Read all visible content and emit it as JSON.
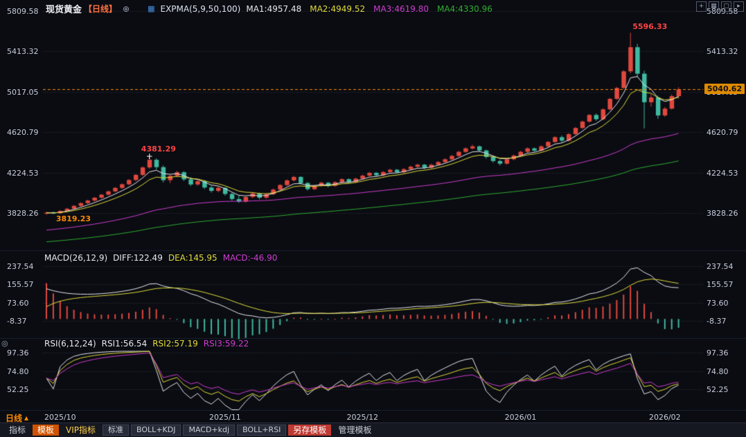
{
  "header": {
    "symbol": "现货黄金",
    "period_tag": "【日线】",
    "indicator": "EXPMA(5,9,50,100)",
    "ma_labels": [
      "MA1:4957.48",
      "MA2:4949.52",
      "MA3:4619.80",
      "MA4:4330.96"
    ]
  },
  "window_icons": [
    {
      "glyph": "+",
      "name": "add-chart-icon"
    },
    {
      "glyph": "▦",
      "name": "grid-layout-icon"
    },
    {
      "glyph": "▢",
      "name": "single-layout-icon"
    },
    {
      "glyph": "▸",
      "name": "collapse-panel-icon"
    }
  ],
  "macd": {
    "header": "MACD(26,12,9)",
    "diff": "DIFF:122.49",
    "dea": "DEA:145.95",
    "value": "MACD:-46.90"
  },
  "rsi": {
    "header": "RSI(6,12,24)",
    "r1": "RSI1:56.54",
    "r2": "RSI2:57.19",
    "r3": "RSI3:59.22"
  },
  "x_axis": {
    "period_label": "日线",
    "up_arrow": "▲"
  },
  "toolbar": {
    "items": [
      {
        "label": "指标",
        "name": "tab-indicator",
        "style": "plain"
      },
      {
        "label": "模板",
        "name": "tab-template",
        "style": "orange"
      },
      {
        "label": "VIP指标",
        "name": "tab-vip-indicator",
        "style": "vip"
      },
      {
        "label": "标准",
        "name": "preset-standard",
        "style": "btn"
      },
      {
        "label": "BOLL+KDJ",
        "name": "preset-boll-kdj",
        "style": "btn"
      },
      {
        "label": "MACD+kdj",
        "name": "preset-macd-kdj",
        "style": "btn"
      },
      {
        "label": "BOLL+RSI",
        "name": "preset-boll-rsi",
        "style": "btn"
      },
      {
        "label": "另存模板",
        "name": "save-template-button",
        "style": "red"
      },
      {
        "label": "管理模板",
        "name": "manage-template-button",
        "style": "plain"
      }
    ]
  },
  "colors": {
    "up": "#e0483e",
    "down": "#3fb9a0",
    "ma1": "#e8e8f0",
    "ma2": "#e2dc3a",
    "ma3": "#cf3ccf",
    "ma4": "#2fae2f",
    "accent": "#ff8a00",
    "grid": "rgba(140,150,175,0.30)",
    "tag_bg": "#de8a00",
    "tag_text": "#101010"
  },
  "chart_data": {
    "type": "candlestick",
    "title": "现货黄金 日线",
    "main": {
      "axis_values": [
        5809.58,
        5413.32,
        5017.05,
        4620.79,
        4224.53,
        3828.26
      ],
      "ema_periods": [
        5,
        9,
        50,
        100
      ],
      "ema_current": [
        4957.48,
        4949.52,
        4619.8,
        4330.96
      ]
    },
    "macd": {
      "params": [
        26,
        12,
        9
      ],
      "axis_values": [
        237.54,
        155.57,
        73.6,
        -8.37
      ],
      "current": {
        "diff": 122.49,
        "dea": 145.95,
        "macd": -46.9
      }
    },
    "rsi": {
      "params": [
        6,
        12,
        24
      ],
      "axis_values": [
        97.36,
        74.8,
        52.25
      ],
      "current": [
        56.54,
        57.19,
        59.22
      ]
    },
    "x_ticks": [
      {
        "i": 2,
        "label": "2025/10"
      },
      {
        "i": 26,
        "label": "2025/11"
      },
      {
        "i": 46,
        "label": "2025/12"
      },
      {
        "i": 69,
        "label": "2026/01"
      },
      {
        "i": 90,
        "label": "2026/02"
      }
    ],
    "annotations": {
      "peak": {
        "text": "5596.33",
        "i": 85
      },
      "local_high": {
        "text": "4381.29",
        "i": 15
      },
      "low": {
        "text": "3819.23",
        "i": 1
      },
      "last_price": "5040.62"
    },
    "candles": [
      [
        3822,
        3840,
        3810,
        3830
      ],
      [
        3830,
        3842,
        3819.23,
        3826
      ],
      [
        3826,
        3856,
        3818,
        3848
      ],
      [
        3848,
        3878,
        3840,
        3870
      ],
      [
        3870,
        3905,
        3862,
        3898
      ],
      [
        3898,
        3932,
        3888,
        3925
      ],
      [
        3925,
        3958,
        3915,
        3950
      ],
      [
        3950,
        3985,
        3940,
        3978
      ],
      [
        3978,
        4015,
        3968,
        4008
      ],
      [
        4008,
        4048,
        3998,
        4040
      ],
      [
        4040,
        4082,
        4030,
        4074
      ],
      [
        4074,
        4118,
        4064,
        4110
      ],
      [
        4110,
        4160,
        4100,
        4152
      ],
      [
        4152,
        4210,
        4142,
        4202
      ],
      [
        4202,
        4285,
        4192,
        4275
      ],
      [
        4275,
        4381.29,
        4262,
        4350
      ],
      [
        4350,
        4365,
        4255,
        4278
      ],
      [
        4278,
        4295,
        4128,
        4150
      ],
      [
        4150,
        4205,
        4122,
        4192
      ],
      [
        4192,
        4240,
        4178,
        4228
      ],
      [
        4228,
        4238,
        4142,
        4158
      ],
      [
        4158,
        4180,
        4092,
        4108
      ],
      [
        4108,
        4152,
        4095,
        4140
      ],
      [
        4140,
        4150,
        4062,
        4078
      ],
      [
        4078,
        4095,
        4028,
        4045
      ],
      [
        4045,
        4088,
        4032,
        4075
      ],
      [
        4075,
        4082,
        3998,
        4015
      ],
      [
        4015,
        4028,
        3948,
        3965
      ],
      [
        3965,
        3998,
        3928,
        3940
      ],
      [
        3940,
        3995,
        3930,
        3985
      ],
      [
        3985,
        4030,
        3975,
        4020
      ],
      [
        4020,
        4028,
        3962,
        3978
      ],
      [
        3978,
        4022,
        3968,
        4012
      ],
      [
        4012,
        4068,
        4002,
        4058
      ],
      [
        4058,
        4112,
        4048,
        4102
      ],
      [
        4102,
        4158,
        4092,
        4148
      ],
      [
        4148,
        4192,
        4138,
        4182
      ],
      [
        4182,
        4190,
        4108,
        4122
      ],
      [
        4122,
        4132,
        4048,
        4062
      ],
      [
        4062,
        4105,
        4052,
        4095
      ],
      [
        4095,
        4135,
        4085,
        4125
      ],
      [
        4125,
        4132,
        4080,
        4095
      ],
      [
        4095,
        4140,
        4085,
        4130
      ],
      [
        4130,
        4170,
        4120,
        4160
      ],
      [
        4160,
        4168,
        4118,
        4132
      ],
      [
        4132,
        4175,
        4122,
        4165
      ],
      [
        4165,
        4205,
        4155,
        4195
      ],
      [
        4195,
        4232,
        4185,
        4222
      ],
      [
        4222,
        4230,
        4185,
        4198
      ],
      [
        4198,
        4240,
        4188,
        4230
      ],
      [
        4230,
        4262,
        4220,
        4252
      ],
      [
        4252,
        4260,
        4215,
        4228
      ],
      [
        4228,
        4268,
        4218,
        4258
      ],
      [
        4258,
        4292,
        4248,
        4282
      ],
      [
        4282,
        4312,
        4272,
        4302
      ],
      [
        4302,
        4310,
        4258,
        4272
      ],
      [
        4272,
        4312,
        4262,
        4302
      ],
      [
        4302,
        4338,
        4292,
        4328
      ],
      [
        4328,
        4365,
        4318,
        4355
      ],
      [
        4355,
        4398,
        4345,
        4388
      ],
      [
        4388,
        4438,
        4378,
        4428
      ],
      [
        4428,
        4472,
        4418,
        4462
      ],
      [
        4462,
        4498,
        4450,
        4482
      ],
      [
        4482,
        4490,
        4428,
        4442
      ],
      [
        4442,
        4450,
        4362,
        4378
      ],
      [
        4378,
        4390,
        4322,
        4338
      ],
      [
        4338,
        4352,
        4295,
        4312
      ],
      [
        4312,
        4365,
        4302,
        4355
      ],
      [
        4355,
        4402,
        4345,
        4392
      ],
      [
        4392,
        4438,
        4382,
        4428
      ],
      [
        4428,
        4472,
        4418,
        4462
      ],
      [
        4462,
        4472,
        4425,
        4440
      ],
      [
        4440,
        4492,
        4430,
        4482
      ],
      [
        4482,
        4535,
        4472,
        4525
      ],
      [
        4525,
        4582,
        4515,
        4572
      ],
      [
        4572,
        4588,
        4522,
        4538
      ],
      [
        4538,
        4612,
        4528,
        4602
      ],
      [
        4602,
        4672,
        4592,
        4662
      ],
      [
        4662,
        4735,
        4652,
        4725
      ],
      [
        4725,
        4800,
        4715,
        4790
      ],
      [
        4790,
        4805,
        4732,
        4748
      ],
      [
        4748,
        4855,
        4738,
        4845
      ],
      [
        4845,
        4958,
        4835,
        4948
      ],
      [
        4948,
        5065,
        4938,
        5055
      ],
      [
        5055,
        5230,
        5045,
        5218
      ],
      [
        5218,
        5596.33,
        5200,
        5455
      ],
      [
        5455,
        5488,
        5160,
        5195
      ],
      [
        5195,
        5225,
        4658,
        4915
      ],
      [
        4915,
        4992,
        4872,
        4962
      ],
      [
        4962,
        4980,
        4752,
        4785
      ],
      [
        4785,
        4868,
        4772,
        4852
      ],
      [
        4852,
        4992,
        4842,
        4975
      ],
      [
        4975,
        5062,
        4952,
        5040.62
      ]
    ]
  }
}
